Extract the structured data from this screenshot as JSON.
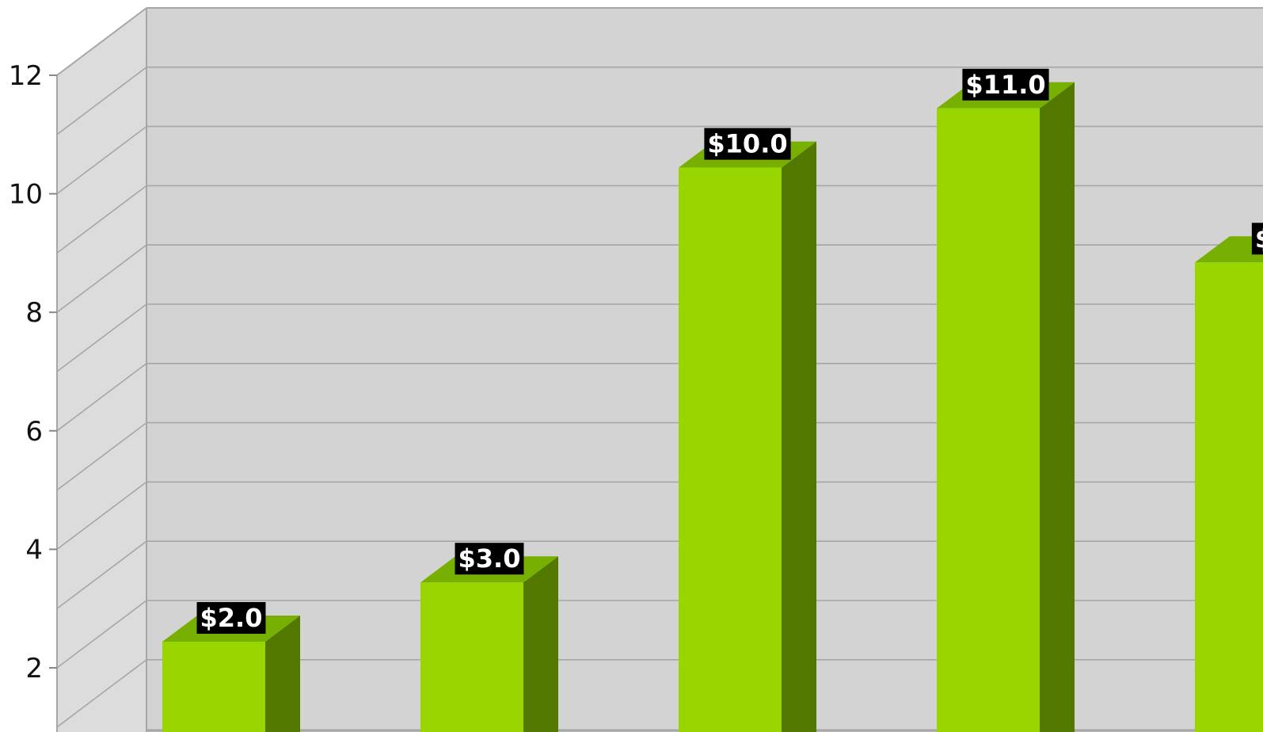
{
  "chart_data": {
    "type": "bar",
    "style": "3d",
    "categories": [
      "",
      "",
      "",
      "",
      ""
    ],
    "values": [
      2.0,
      3.0,
      10.0,
      11.0,
      8.4
    ],
    "data_labels": [
      "$2.0",
      "$3.0",
      "$10.0",
      "$11.0",
      "$"
    ],
    "y_ticks": [
      2,
      4,
      6,
      8,
      10,
      12
    ],
    "y_tick_labels": [
      "2",
      "4",
      "6",
      "8",
      "10",
      "12"
    ],
    "ylim": [
      0.8,
      12
    ],
    "grid": true,
    "title": "",
    "xlabel": "",
    "ylabel": "",
    "colors": {
      "bar_front": "#99d600",
      "bar_top": "#77b000",
      "bar_side": "#527800",
      "plot_back": "#d3d3d3",
      "plot_wall": "#dcdcdc",
      "grid": "#a6a6a6",
      "label_bg": "#000000",
      "label_text": "#ffffff"
    }
  }
}
